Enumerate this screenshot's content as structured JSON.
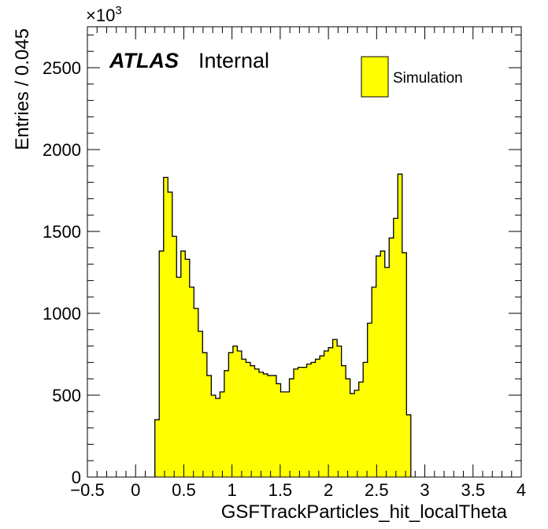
{
  "chart_data": {
    "type": "histogram",
    "xlabel": "GSFTrackParticles_hit_localTheta",
    "ylabel": "Entries / 0.045",
    "y_multiplier": "×10",
    "y_multiplier_exp": "3",
    "xlim": [
      -0.5,
      4.0
    ],
    "ylim": [
      0,
      2750
    ],
    "x_ticks": [
      -0.5,
      0,
      0.5,
      1,
      1.5,
      2,
      2.5,
      3,
      3.5,
      4
    ],
    "x_tick_labels": [
      "−0.5",
      "0",
      "0.5",
      "1",
      "1.5",
      "2",
      "2.5",
      "3",
      "3.5",
      "4"
    ],
    "y_ticks": [
      0,
      500,
      1000,
      1500,
      2000,
      2500
    ],
    "y_tick_labels": [
      "0",
      "500",
      "1000",
      "1500",
      "2000",
      "2500"
    ],
    "bin_width": 0.045,
    "bin_start": 0.2,
    "values": [
      350,
      1380,
      1830,
      1740,
      1470,
      1220,
      1380,
      1330,
      1160,
      1030,
      890,
      760,
      620,
      500,
      480,
      520,
      650,
      760,
      800,
      770,
      720,
      700,
      680,
      660,
      640,
      630,
      620,
      620,
      570,
      520,
      520,
      600,
      660,
      670,
      670,
      690,
      700,
      720,
      740,
      770,
      790,
      840,
      800,
      680,
      600,
      510,
      530,
      580,
      700,
      940,
      1160,
      1350,
      1380,
      1280,
      1460,
      1580,
      1850,
      1370,
      380
    ],
    "fill_color": "#ffff00",
    "line_color": "#000000",
    "legend": {
      "label": "Simulation",
      "position": "top-right"
    },
    "label": {
      "atlas": "ATLAS",
      "status": "Internal"
    }
  }
}
